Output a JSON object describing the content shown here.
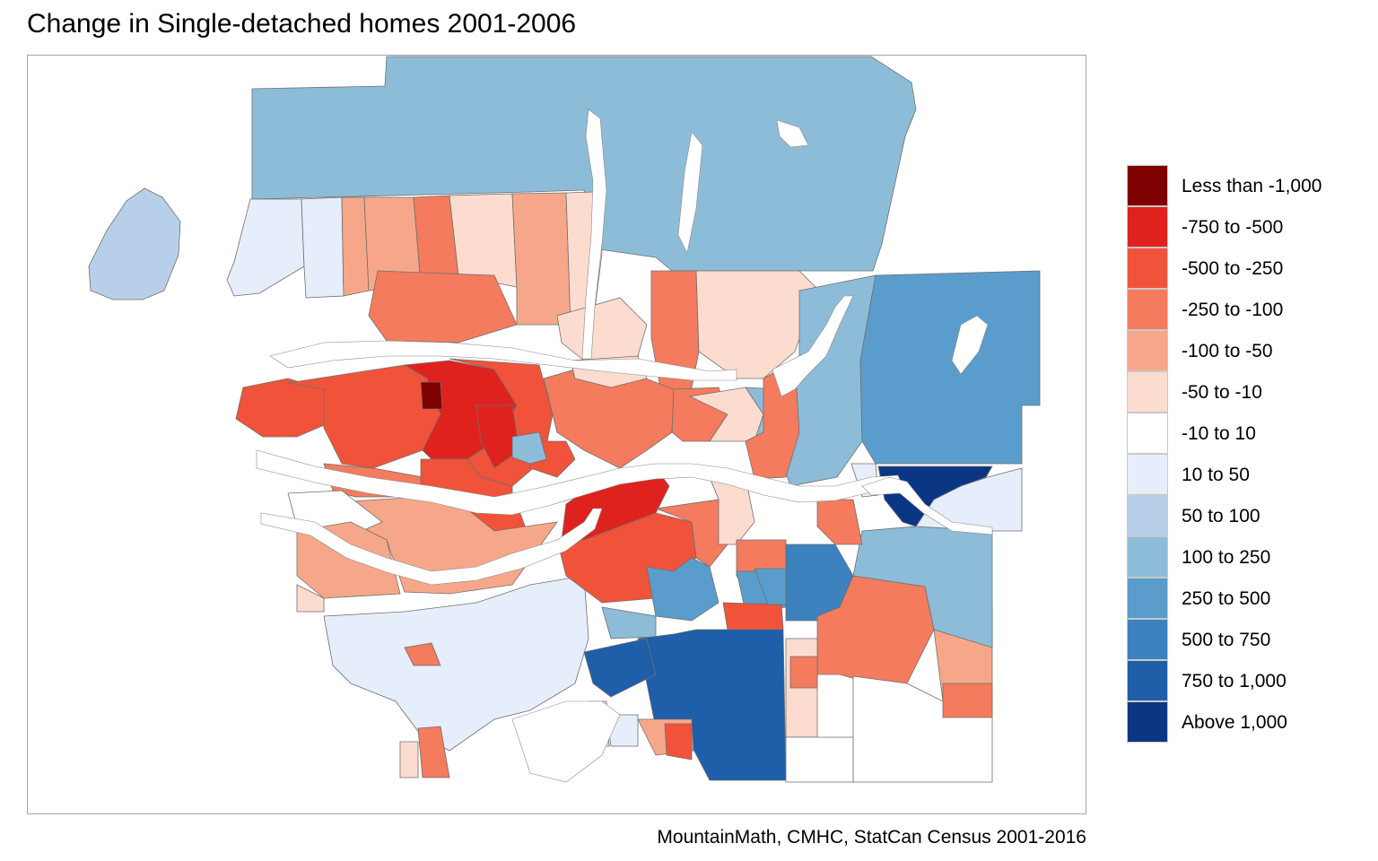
{
  "title": "Change in Single-detached homes 2001-2006",
  "caption": "MountainMath, CMHC, StatCan Census 2001-2016",
  "legend": [
    {
      "label": "Less than -1,000",
      "color": "#7f0000"
    },
    {
      "label": "-750 to -500",
      "color": "#e0221f"
    },
    {
      "label": "-500 to -250",
      "color": "#f0533a"
    },
    {
      "label": "-250 to -100",
      "color": "#f47b5e"
    },
    {
      "label": "-100 to -50",
      "color": "#f7a789"
    },
    {
      "label": "-50 to -10",
      "color": "#fddcd0"
    },
    {
      "label": "-10 to 10",
      "color": "#ffffff"
    },
    {
      "label": "10 to 50",
      "color": "#e6eefb"
    },
    {
      "label": "50 to 100",
      "color": "#b8cfea"
    },
    {
      "label": "100 to 250",
      "color": "#8dbcd9"
    },
    {
      "label": "250 to 500",
      "color": "#5a9dcc"
    },
    {
      "label": "500 to 750",
      "color": "#3b82bf"
    },
    {
      "label": "750 to 1,000",
      "color": "#1f5ea8"
    },
    {
      "label": "Above 1,000",
      "color": "#0b3684"
    }
  ]
}
